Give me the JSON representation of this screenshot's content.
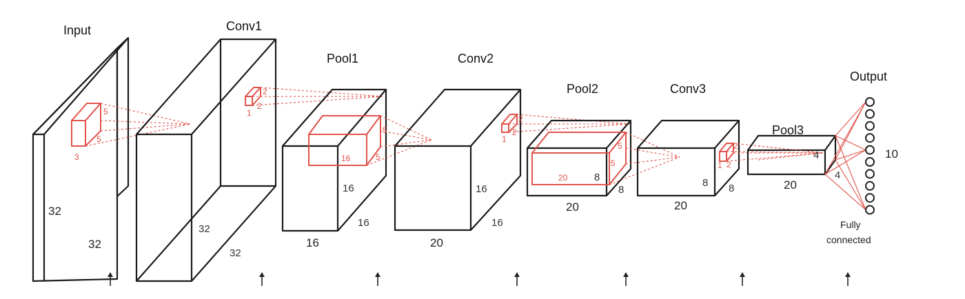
{
  "layers": {
    "input": {
      "title": "Input",
      "w": "32",
      "h": "32",
      "filter": {
        "a": "5",
        "b": "5",
        "c": "3"
      }
    },
    "conv1": {
      "title": "Conv1",
      "w": "32",
      "h": "32",
      "filter": {
        "a": "2",
        "b": "2",
        "c": "1"
      }
    },
    "pool1": {
      "title": "Pool1",
      "w": "16",
      "h": "16",
      "d": "16",
      "filter": {
        "a": "16",
        "b": "5",
        "c": "5"
      }
    },
    "conv2": {
      "title": "Conv2",
      "w": "16",
      "h": "16",
      "d": "20",
      "filter": {
        "a": "2",
        "b": "2",
        "c": "1"
      }
    },
    "pool2": {
      "title": "Pool2",
      "w": "8",
      "h": "8",
      "d": "20",
      "filter": {
        "a": "20",
        "b": "8",
        "c": "5",
        "e": "5"
      }
    },
    "conv3": {
      "title": "Conv3",
      "w": "8",
      "h": "8",
      "d": "20",
      "filter": {
        "a": "2",
        "b": "2",
        "c": "1"
      }
    },
    "pool3": {
      "title": "Pool3",
      "w": "4",
      "h": "4",
      "d": "20"
    },
    "output": {
      "title": "Output",
      "count": "10",
      "note_line1": "Fully",
      "note_line2": "connected"
    }
  },
  "colors": {
    "outline": "#1a1a1a",
    "filter": "#e0524a",
    "arrow": "#222222"
  },
  "output_nodes": 10,
  "arrow_count": 7
}
